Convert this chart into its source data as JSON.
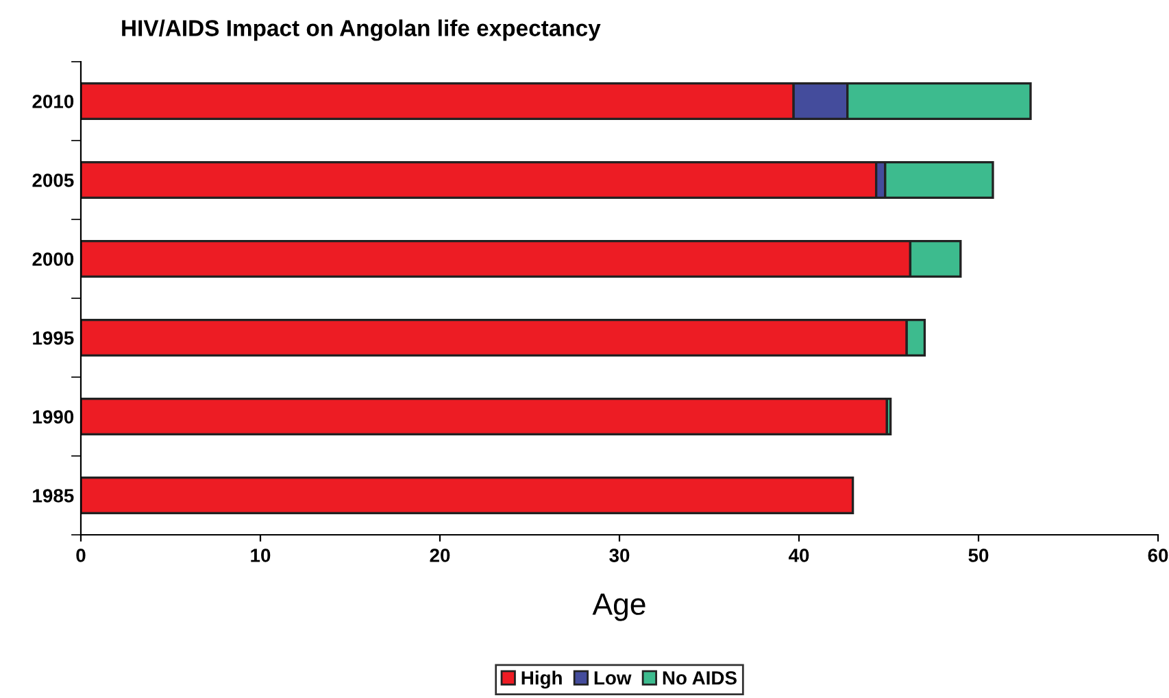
{
  "chart_data": {
    "type": "bar",
    "orientation": "horizontal",
    "stacked": true,
    "title": "HIV/AIDS Impact on Angolan life expectancy",
    "xlabel": "Age",
    "categories": [
      "2010",
      "2005",
      "2000",
      "1995",
      "1990",
      "1985"
    ],
    "series": [
      {
        "name": "High",
        "color": "#ed1c24",
        "values": [
          39.7,
          44.3,
          46.2,
          46.0,
          44.9,
          43.0
        ]
      },
      {
        "name": "Low",
        "color": "#444c9c",
        "values": [
          3.0,
          0.5,
          0,
          0,
          0,
          0
        ]
      },
      {
        "name": "No AIDS",
        "color": "#3dbb8e",
        "values": [
          10.2,
          6.0,
          2.8,
          1.0,
          0.2,
          0
        ]
      }
    ],
    "xlim": [
      0,
      60
    ],
    "xticks": [
      0,
      10,
      20,
      30,
      40,
      50,
      60
    ],
    "grid": false,
    "legend": "bottom"
  }
}
